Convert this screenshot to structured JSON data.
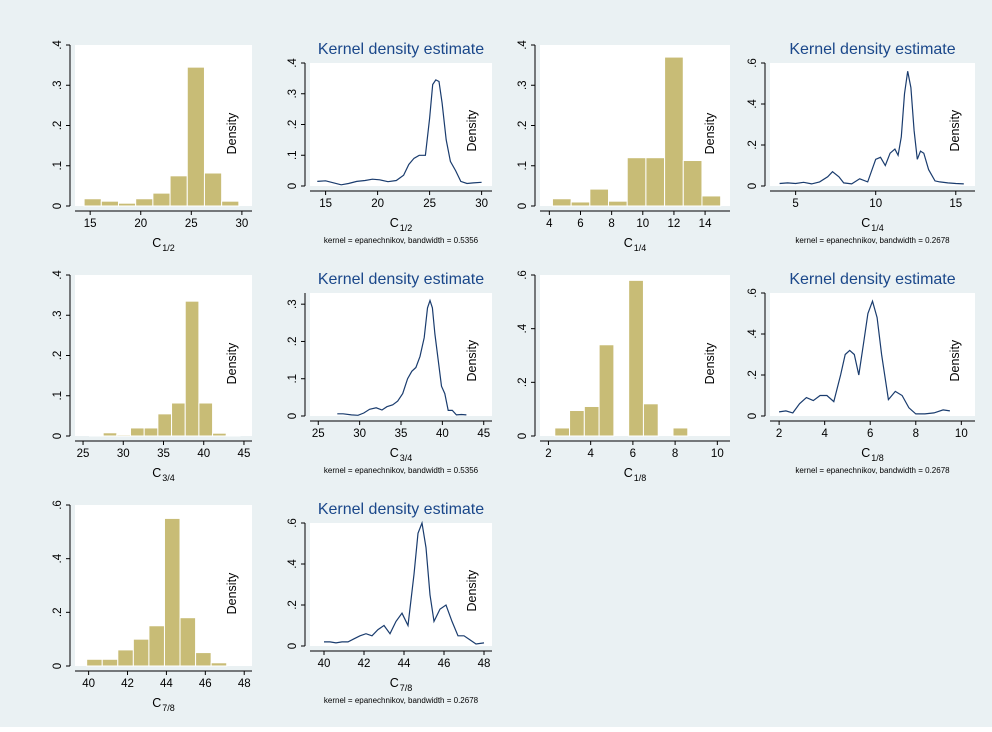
{
  "colors": {
    "background": "#eaf1f3",
    "bar": "#c8bc76",
    "line": "#1a3c6e",
    "title": "#1a478a"
  },
  "chart_data": [
    {
      "type": "bar",
      "ylabel": "Density",
      "xlabel": {
        "main": "C",
        "sub": "1/2"
      },
      "xlim": [
        13.5,
        31
      ],
      "ylim": [
        0,
        0.4
      ],
      "xticks": [
        15,
        20,
        25,
        30
      ],
      "xtick_labels": [
        "15",
        "20",
        "25",
        "30"
      ],
      "yticks": [
        0,
        0.1,
        0.2,
        0.3,
        0.4
      ],
      "ytick_labels": [
        "0",
        ".1",
        ".2",
        ".3",
        ".4"
      ],
      "bins": [
        {
          "x0": 14.4,
          "x1": 16.1,
          "value": 0.018
        },
        {
          "x0": 16.1,
          "x1": 17.8,
          "value": 0.012
        },
        {
          "x0": 17.8,
          "x1": 19.5,
          "value": 0.007
        },
        {
          "x0": 19.5,
          "x1": 21.2,
          "value": 0.018
        },
        {
          "x0": 21.2,
          "x1": 22.9,
          "value": 0.032
        },
        {
          "x0": 22.9,
          "x1": 24.6,
          "value": 0.075
        },
        {
          "x0": 24.6,
          "x1": 26.3,
          "value": 0.345
        },
        {
          "x0": 26.3,
          "x1": 28.0,
          "value": 0.082
        },
        {
          "x0": 28.0,
          "x1": 29.7,
          "value": 0.012
        }
      ]
    },
    {
      "type": "line",
      "title": "Kernel density estimate",
      "ylabel": "Density",
      "xlabel": {
        "main": "C",
        "sub": "1/2"
      },
      "note": "kernel = epanechnikov, bandwidth = 0.5356",
      "xlim": [
        13.5,
        31
      ],
      "ylim": [
        0,
        0.4
      ],
      "xticks": [
        15,
        20,
        25,
        30
      ],
      "xtick_labels": [
        "15",
        "20",
        "25",
        "30"
      ],
      "yticks": [
        0,
        0.1,
        0.2,
        0.3,
        0.4
      ],
      "ytick_labels": [
        "0",
        ".1",
        ".2",
        ".3",
        ".4"
      ],
      "x": [
        14.2,
        15,
        15.8,
        16.5,
        17.2,
        18,
        18.8,
        19.5,
        20.2,
        21,
        21.8,
        22.5,
        23,
        23.5,
        24,
        24.6,
        25,
        25.3,
        25.6,
        25.9,
        26.2,
        26.6,
        27,
        27.5,
        28,
        28.6,
        29.2,
        30
      ],
      "y": [
        0.015,
        0.017,
        0.01,
        0.004,
        0.008,
        0.015,
        0.018,
        0.022,
        0.02,
        0.014,
        0.018,
        0.035,
        0.07,
        0.09,
        0.1,
        0.1,
        0.22,
        0.33,
        0.345,
        0.34,
        0.27,
        0.15,
        0.08,
        0.05,
        0.015,
        0.008,
        0.01,
        0.012
      ]
    },
    {
      "type": "bar",
      "ylabel": "Density",
      "xlabel": {
        "main": "C",
        "sub": "1/4"
      },
      "xlim": [
        3.4,
        15.6
      ],
      "ylim": [
        0,
        0.4
      ],
      "xticks": [
        4,
        6,
        8,
        10,
        12,
        14
      ],
      "xtick_labels": [
        "4",
        "6",
        "8",
        "10",
        "12",
        "14"
      ],
      "yticks": [
        0,
        0.1,
        0.2,
        0.3,
        0.4
      ],
      "ytick_labels": [
        "0",
        ".1",
        ".2",
        ".3",
        ".4"
      ],
      "bins": [
        {
          "x0": 4.2,
          "x1": 5.4,
          "value": 0.018
        },
        {
          "x0": 5.4,
          "x1": 6.6,
          "value": 0.01
        },
        {
          "x0": 6.6,
          "x1": 7.8,
          "value": 0.042
        },
        {
          "x0": 7.8,
          "x1": 9.0,
          "value": 0.012
        },
        {
          "x0": 9.0,
          "x1": 10.2,
          "value": 0.12
        },
        {
          "x0": 10.2,
          "x1": 11.4,
          "value": 0.12
        },
        {
          "x0": 11.4,
          "x1": 12.6,
          "value": 0.37
        },
        {
          "x0": 12.6,
          "x1": 13.8,
          "value": 0.113
        },
        {
          "x0": 13.8,
          "x1": 15.0,
          "value": 0.025
        }
      ]
    },
    {
      "type": "line",
      "title": "Kernel density estimate",
      "ylabel": "Density",
      "xlabel": {
        "main": "C",
        "sub": "1/4"
      },
      "note": "kernel = epanechnikov, bandwidth = 0.2678",
      "xlim": [
        3.4,
        16.2
      ],
      "ylim": [
        0,
        0.6
      ],
      "xticks": [
        5,
        10,
        15
      ],
      "xtick_labels": [
        "5",
        "10",
        "15"
      ],
      "yticks": [
        0,
        0.2,
        0.4,
        0.6
      ],
      "ytick_labels": [
        "0",
        ".2",
        ".4",
        ".6"
      ],
      "x": [
        4,
        4.5,
        5,
        5.5,
        6,
        6.5,
        7,
        7.3,
        7.7,
        8,
        8.5,
        9,
        9.5,
        10,
        10.3,
        10.6,
        10.9,
        11.2,
        11.4,
        11.6,
        11.8,
        12,
        12.2,
        12.4,
        12.6,
        12.8,
        13,
        13.3,
        13.7,
        14,
        14.5,
        15,
        15.5
      ],
      "y": [
        0.012,
        0.015,
        0.012,
        0.018,
        0.01,
        0.02,
        0.045,
        0.07,
        0.045,
        0.015,
        0.01,
        0.035,
        0.02,
        0.13,
        0.14,
        0.1,
        0.16,
        0.18,
        0.15,
        0.24,
        0.45,
        0.56,
        0.48,
        0.27,
        0.13,
        0.17,
        0.16,
        0.08,
        0.025,
        0.02,
        0.015,
        0.012,
        0.01
      ]
    },
    {
      "type": "bar",
      "ylabel": "Density",
      "xlabel": {
        "main": "C",
        "sub": "3/4"
      },
      "xlim": [
        24,
        46
      ],
      "ylim": [
        0,
        0.4
      ],
      "xticks": [
        25,
        30,
        35,
        40,
        45
      ],
      "xtick_labels": [
        "25",
        "30",
        "35",
        "40",
        "45"
      ],
      "yticks": [
        0,
        0.1,
        0.2,
        0.3,
        0.4
      ],
      "ytick_labels": [
        "0",
        ".1",
        ".2",
        ".3",
        ".4"
      ],
      "bins": [
        {
          "x0": 25.8,
          "x1": 27.5,
          "value": 0.002
        },
        {
          "x0": 27.5,
          "x1": 29.2,
          "value": 0.008
        },
        {
          "x0": 29.2,
          "x1": 30.9,
          "value": 0.003
        },
        {
          "x0": 30.9,
          "x1": 32.6,
          "value": 0.02
        },
        {
          "x0": 32.6,
          "x1": 34.3,
          "value": 0.02
        },
        {
          "x0": 34.3,
          "x1": 36.0,
          "value": 0.055
        },
        {
          "x0": 36.0,
          "x1": 37.7,
          "value": 0.082
        },
        {
          "x0": 37.7,
          "x1": 39.4,
          "value": 0.335
        },
        {
          "x0": 39.4,
          "x1": 41.1,
          "value": 0.082
        },
        {
          "x0": 41.1,
          "x1": 42.8,
          "value": 0.007
        },
        {
          "x0": 42.8,
          "x1": 44.5,
          "value": 0.002
        }
      ]
    },
    {
      "type": "line",
      "title": "Kernel density estimate",
      "ylabel": "Density",
      "xlabel": {
        "main": "C",
        "sub": "3/4"
      },
      "note": "kernel = epanechnikov, bandwidth = 0.5356",
      "xlim": [
        24,
        46
      ],
      "ylim": [
        0,
        0.33
      ],
      "xticks": [
        25,
        30,
        35,
        40,
        45
      ],
      "xtick_labels": [
        "25",
        "30",
        "35",
        "40",
        "45"
      ],
      "yticks": [
        0,
        0.1,
        0.2,
        0.3
      ],
      "ytick_labels": [
        "0",
        ".1",
        ".2",
        ".3"
      ],
      "x": [
        27.3,
        28,
        29,
        29.8,
        30.5,
        31.2,
        32,
        32.7,
        33.3,
        34,
        34.6,
        35.2,
        35.8,
        36.3,
        36.8,
        37.3,
        37.8,
        38.2,
        38.5,
        38.8,
        39.1,
        39.5,
        39.9,
        40.3,
        40.7,
        41.2,
        41.7,
        42.3,
        42.9
      ],
      "y": [
        0.006,
        0.006,
        0.003,
        0.002,
        0.008,
        0.018,
        0.022,
        0.016,
        0.025,
        0.03,
        0.04,
        0.06,
        0.1,
        0.12,
        0.13,
        0.16,
        0.21,
        0.29,
        0.31,
        0.29,
        0.22,
        0.15,
        0.08,
        0.06,
        0.015,
        0.015,
        0.003,
        0.004,
        0.003
      ]
    },
    {
      "type": "bar",
      "ylabel": "Density",
      "xlabel": {
        "main": "C",
        "sub": "1/8"
      },
      "xlim": [
        1.6,
        10.6
      ],
      "ylim": [
        0,
        0.6
      ],
      "xticks": [
        2,
        4,
        6,
        8,
        10
      ],
      "xtick_labels": [
        "2",
        "4",
        "6",
        "8",
        "10"
      ],
      "yticks": [
        0,
        0.2,
        0.4,
        0.6
      ],
      "ytick_labels": [
        "0",
        ".2",
        ".4",
        ".6"
      ],
      "bins": [
        {
          "x0": 2.3,
          "x1": 3.0,
          "value": 0.03
        },
        {
          "x0": 3.0,
          "x1": 3.7,
          "value": 0.095
        },
        {
          "x0": 3.7,
          "x1": 4.4,
          "value": 0.11
        },
        {
          "x0": 4.4,
          "x1": 5.1,
          "value": 0.34
        },
        {
          "x0": 5.1,
          "x1": 5.8,
          "value": 0.0
        },
        {
          "x0": 5.8,
          "x1": 6.5,
          "value": 0.58
        },
        {
          "x0": 6.5,
          "x1": 7.2,
          "value": 0.12
        },
        {
          "x0": 7.2,
          "x1": 7.9,
          "value": 0.0
        },
        {
          "x0": 7.9,
          "x1": 8.6,
          "value": 0.03
        }
      ]
    },
    {
      "type": "line",
      "title": "Kernel density estimate",
      "ylabel": "Density",
      "xlabel": {
        "main": "C",
        "sub": "1/8"
      },
      "note": "kernel = epanechnikov, bandwidth = 0.2678",
      "xlim": [
        1.6,
        10.6
      ],
      "ylim": [
        0,
        0.6
      ],
      "xticks": [
        2,
        4,
        6,
        8,
        10
      ],
      "xtick_labels": [
        "2",
        "4",
        "6",
        "8",
        "10"
      ],
      "yticks": [
        0,
        0.2,
        0.4,
        0.6
      ],
      "ytick_labels": [
        "0",
        ".2",
        ".4",
        ".6"
      ],
      "x": [
        2,
        2.3,
        2.6,
        2.9,
        3.2,
        3.5,
        3.8,
        4.1,
        4.4,
        4.7,
        4.9,
        5.1,
        5.3,
        5.5,
        5.7,
        5.9,
        6.1,
        6.3,
        6.5,
        6.8,
        7.1,
        7.4,
        7.7,
        8,
        8.4,
        8.8,
        9.2,
        9.5
      ],
      "y": [
        0.02,
        0.025,
        0.015,
        0.06,
        0.09,
        0.075,
        0.1,
        0.1,
        0.07,
        0.2,
        0.3,
        0.32,
        0.3,
        0.2,
        0.35,
        0.5,
        0.56,
        0.48,
        0.3,
        0.08,
        0.12,
        0.1,
        0.04,
        0.01,
        0.01,
        0.015,
        0.03,
        0.025
      ]
    },
    {
      "type": "bar",
      "ylabel": "Density",
      "xlabel": {
        "main": "C",
        "sub": "7/8"
      },
      "xlim": [
        39.3,
        48.4
      ],
      "ylim": [
        0,
        0.6
      ],
      "xticks": [
        40,
        42,
        44,
        46,
        48
      ],
      "xtick_labels": [
        "40",
        "42",
        "44",
        "46",
        "48"
      ],
      "yticks": [
        0,
        0.2,
        0.4,
        0.6
      ],
      "ytick_labels": [
        "0",
        ".2",
        ".4",
        ".6"
      ],
      "bins": [
        {
          "x0": 39.9,
          "x1": 40.7,
          "value": 0.025
        },
        {
          "x0": 40.7,
          "x1": 41.5,
          "value": 0.025
        },
        {
          "x0": 41.5,
          "x1": 42.3,
          "value": 0.06
        },
        {
          "x0": 42.3,
          "x1": 43.1,
          "value": 0.1
        },
        {
          "x0": 43.1,
          "x1": 43.9,
          "value": 0.15
        },
        {
          "x0": 43.9,
          "x1": 44.7,
          "value": 0.55
        },
        {
          "x0": 44.7,
          "x1": 45.5,
          "value": 0.18
        },
        {
          "x0": 45.5,
          "x1": 46.3,
          "value": 0.05
        },
        {
          "x0": 46.3,
          "x1": 47.1,
          "value": 0.012
        }
      ]
    },
    {
      "type": "line",
      "title": "Kernel density estimate",
      "ylabel": "Density",
      "xlabel": {
        "main": "C",
        "sub": "7/8"
      },
      "note": "kernel = epanechnikov, bandwidth = 0.2678",
      "xlim": [
        39.3,
        48.4
      ],
      "ylim": [
        0,
        0.6
      ],
      "xticks": [
        40,
        42,
        44,
        46,
        48
      ],
      "xtick_labels": [
        "40",
        "42",
        "44",
        "46",
        "48"
      ],
      "yticks": [
        0,
        0.2,
        0.4,
        0.6
      ],
      "ytick_labels": [
        "0",
        ".2",
        ".4",
        ".6"
      ],
      "x": [
        40,
        40.3,
        40.6,
        40.9,
        41.2,
        41.5,
        41.8,
        42.1,
        42.4,
        42.7,
        43,
        43.3,
        43.6,
        43.9,
        44.2,
        44.5,
        44.7,
        44.9,
        45.1,
        45.3,
        45.5,
        45.8,
        46.1,
        46.4,
        46.7,
        47,
        47.3,
        47.6,
        48
      ],
      "y": [
        0.02,
        0.02,
        0.015,
        0.02,
        0.02,
        0.035,
        0.05,
        0.06,
        0.05,
        0.08,
        0.1,
        0.06,
        0.12,
        0.16,
        0.1,
        0.35,
        0.55,
        0.6,
        0.48,
        0.25,
        0.12,
        0.18,
        0.2,
        0.12,
        0.05,
        0.05,
        0.03,
        0.01,
        0.015
      ]
    }
  ]
}
